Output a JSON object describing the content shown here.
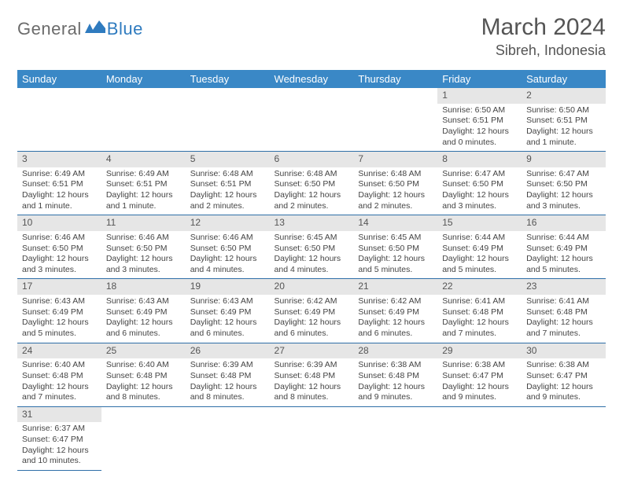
{
  "logo": {
    "general": "General",
    "blue": "Blue"
  },
  "title": "March 2024",
  "location": "Sibreh, Indonesia",
  "colors": {
    "header_bg": "#3a88c6",
    "header_text": "#ffffff",
    "daynum_bg": "#e6e6e6",
    "row_border": "#2f6fa8",
    "logo_gray": "#6b6b6b",
    "logo_blue": "#2f7bbf",
    "body_text": "#444444"
  },
  "typography": {
    "title_fontsize": 30,
    "location_fontsize": 18,
    "dayheader_fontsize": 13,
    "cell_fontsize": 10.5
  },
  "day_headers": [
    "Sunday",
    "Monday",
    "Tuesday",
    "Wednesday",
    "Thursday",
    "Friday",
    "Saturday"
  ],
  "weeks": [
    [
      null,
      null,
      null,
      null,
      null,
      {
        "n": "1",
        "sunrise": "6:50 AM",
        "sunset": "6:51 PM",
        "daylight": "12 hours and 0 minutes."
      },
      {
        "n": "2",
        "sunrise": "6:50 AM",
        "sunset": "6:51 PM",
        "daylight": "12 hours and 1 minute."
      }
    ],
    [
      {
        "n": "3",
        "sunrise": "6:49 AM",
        "sunset": "6:51 PM",
        "daylight": "12 hours and 1 minute."
      },
      {
        "n": "4",
        "sunrise": "6:49 AM",
        "sunset": "6:51 PM",
        "daylight": "12 hours and 1 minute."
      },
      {
        "n": "5",
        "sunrise": "6:48 AM",
        "sunset": "6:51 PM",
        "daylight": "12 hours and 2 minutes."
      },
      {
        "n": "6",
        "sunrise": "6:48 AM",
        "sunset": "6:50 PM",
        "daylight": "12 hours and 2 minutes."
      },
      {
        "n": "7",
        "sunrise": "6:48 AM",
        "sunset": "6:50 PM",
        "daylight": "12 hours and 2 minutes."
      },
      {
        "n": "8",
        "sunrise": "6:47 AM",
        "sunset": "6:50 PM",
        "daylight": "12 hours and 3 minutes."
      },
      {
        "n": "9",
        "sunrise": "6:47 AM",
        "sunset": "6:50 PM",
        "daylight": "12 hours and 3 minutes."
      }
    ],
    [
      {
        "n": "10",
        "sunrise": "6:46 AM",
        "sunset": "6:50 PM",
        "daylight": "12 hours and 3 minutes."
      },
      {
        "n": "11",
        "sunrise": "6:46 AM",
        "sunset": "6:50 PM",
        "daylight": "12 hours and 3 minutes."
      },
      {
        "n": "12",
        "sunrise": "6:46 AM",
        "sunset": "6:50 PM",
        "daylight": "12 hours and 4 minutes."
      },
      {
        "n": "13",
        "sunrise": "6:45 AM",
        "sunset": "6:50 PM",
        "daylight": "12 hours and 4 minutes."
      },
      {
        "n": "14",
        "sunrise": "6:45 AM",
        "sunset": "6:50 PM",
        "daylight": "12 hours and 5 minutes."
      },
      {
        "n": "15",
        "sunrise": "6:44 AM",
        "sunset": "6:49 PM",
        "daylight": "12 hours and 5 minutes."
      },
      {
        "n": "16",
        "sunrise": "6:44 AM",
        "sunset": "6:49 PM",
        "daylight": "12 hours and 5 minutes."
      }
    ],
    [
      {
        "n": "17",
        "sunrise": "6:43 AM",
        "sunset": "6:49 PM",
        "daylight": "12 hours and 5 minutes."
      },
      {
        "n": "18",
        "sunrise": "6:43 AM",
        "sunset": "6:49 PM",
        "daylight": "12 hours and 6 minutes."
      },
      {
        "n": "19",
        "sunrise": "6:43 AM",
        "sunset": "6:49 PM",
        "daylight": "12 hours and 6 minutes."
      },
      {
        "n": "20",
        "sunrise": "6:42 AM",
        "sunset": "6:49 PM",
        "daylight": "12 hours and 6 minutes."
      },
      {
        "n": "21",
        "sunrise": "6:42 AM",
        "sunset": "6:49 PM",
        "daylight": "12 hours and 6 minutes."
      },
      {
        "n": "22",
        "sunrise": "6:41 AM",
        "sunset": "6:48 PM",
        "daylight": "12 hours and 7 minutes."
      },
      {
        "n": "23",
        "sunrise": "6:41 AM",
        "sunset": "6:48 PM",
        "daylight": "12 hours and 7 minutes."
      }
    ],
    [
      {
        "n": "24",
        "sunrise": "6:40 AM",
        "sunset": "6:48 PM",
        "daylight": "12 hours and 7 minutes."
      },
      {
        "n": "25",
        "sunrise": "6:40 AM",
        "sunset": "6:48 PM",
        "daylight": "12 hours and 8 minutes."
      },
      {
        "n": "26",
        "sunrise": "6:39 AM",
        "sunset": "6:48 PM",
        "daylight": "12 hours and 8 minutes."
      },
      {
        "n": "27",
        "sunrise": "6:39 AM",
        "sunset": "6:48 PM",
        "daylight": "12 hours and 8 minutes."
      },
      {
        "n": "28",
        "sunrise": "6:38 AM",
        "sunset": "6:48 PM",
        "daylight": "12 hours and 9 minutes."
      },
      {
        "n": "29",
        "sunrise": "6:38 AM",
        "sunset": "6:47 PM",
        "daylight": "12 hours and 9 minutes."
      },
      {
        "n": "30",
        "sunrise": "6:38 AM",
        "sunset": "6:47 PM",
        "daylight": "12 hours and 9 minutes."
      }
    ],
    [
      {
        "n": "31",
        "sunrise": "6:37 AM",
        "sunset": "6:47 PM",
        "daylight": "12 hours and 10 minutes."
      },
      null,
      null,
      null,
      null,
      null,
      null
    ]
  ],
  "labels": {
    "sunrise": "Sunrise: ",
    "sunset": "Sunset: ",
    "daylight": "Daylight: "
  }
}
